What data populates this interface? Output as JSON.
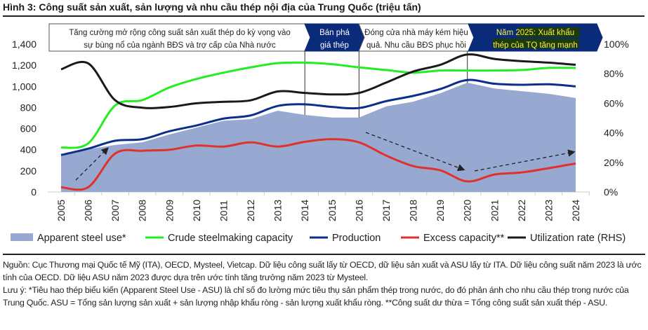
{
  "title": "Hình 3: Công suất sản xuất, sản lượng và nhu cầu thép nội địa của Trung Quốc (triệu tấn)",
  "annotations": [
    {
      "line1": "Tăng cường mở rộng công suất sản xuất thép do kỳ vọng vào",
      "line2": "sự bùng nổ của ngành BĐS và trợ cấp của Nhà nước",
      "style": "light"
    },
    {
      "line1": "Bán phá",
      "line2": "giá thép",
      "style": "dark"
    },
    {
      "line1": "Đóng cửa nhà máy kém hiệu",
      "line2": "quả. Nhu cầu BĐS phục hồi",
      "style": "light"
    },
    {
      "line1": "Năm 2025: Xuất khẩu",
      "line2": "thép của TQ tăng mạnh",
      "style": "dark"
    }
  ],
  "chart_data": {
    "type": "line",
    "title": "Hình 3: Công suất sản xuất, sản lượng và nhu cầu thép nội địa của Trung Quốc (triệu tấn)",
    "x": [
      "2005",
      "2006",
      "2007",
      "2008",
      "2009",
      "2010",
      "2011",
      "2012",
      "2013",
      "2014",
      "2015",
      "2016",
      "2017",
      "2018",
      "2019",
      "2020",
      "2021",
      "2022",
      "2023",
      "2024"
    ],
    "ylim": [
      0,
      1400
    ],
    "yticks": [
      "0",
      "200",
      "400",
      "600",
      "800",
      "1,000",
      "1,200",
      "1,400"
    ],
    "y2lim": [
      0,
      100
    ],
    "y2ticks": [
      "0%",
      "20%",
      "40%",
      "60%",
      "80%",
      "100%"
    ],
    "grid": false,
    "legend_position": "bottom",
    "series": [
      {
        "name": "Apparent steel use*",
        "kind": "area",
        "color": "#97a9d1",
        "axis": "left",
        "values": [
          345,
          405,
          445,
          470,
          545,
          610,
          675,
          690,
          770,
          730,
          705,
          705,
          810,
          855,
          935,
          1035,
          980,
          955,
          930,
          890
        ]
      },
      {
        "name": "Crude steelmaking capacity",
        "kind": "line",
        "color": "#22ee22",
        "axis": "left",
        "values": [
          420,
          460,
          820,
          870,
          990,
          1070,
          1130,
          1180,
          1220,
          1225,
          1210,
          1180,
          1155,
          1130,
          1150,
          1150,
          1150,
          1155,
          1175,
          1175
        ]
      },
      {
        "name": "Production",
        "kind": "line",
        "color": "#0a2f8c",
        "axis": "left",
        "values": [
          350,
          410,
          485,
          500,
          575,
          630,
          695,
          725,
          815,
          830,
          805,
          795,
          860,
          910,
          975,
          1060,
          1025,
          1015,
          1020,
          1000
        ]
      },
      {
        "name": "Excess capacity**",
        "kind": "line",
        "color": "#e0312a",
        "axis": "left",
        "values": [
          45,
          45,
          365,
          390,
          400,
          440,
          430,
          470,
          430,
          475,
          500,
          470,
          345,
          245,
          205,
          100,
          165,
          185,
          225,
          270
        ]
      },
      {
        "name": "Utilization rate (RHS)",
        "kind": "line",
        "color": "#1a1a1a",
        "axis": "right",
        "values": [
          83,
          87,
          62,
          57,
          57.5,
          60,
          61,
          62,
          68,
          67,
          66,
          67,
          74,
          81.5,
          86,
          93,
          90,
          88.5,
          87.5,
          86
        ]
      }
    ]
  },
  "notes": {
    "source": "Nguồn: Cục Thương mại Quốc tế Mỹ (ITA), OECD, Mysteel, Vietcap. Dữ liệu công suất lấy từ OECD, dữ liệu sản xuất và ASU lấy từ ITA. Dữ liệu công suất năm 2023 là ước tính của OECD. Dữ liệu ASU năm 2023 được dựa trên ước tính tăng trưởng năm 2023 từ Mysteel.",
    "note": "Lưu ý: *Tiêu hao thép biểu kiến (Apparent Steel Use - ASU) là chỉ số đo lường mức tiêu thụ sản phẩm thép trong nước, do đó phản ánh cho nhu cầu thép trong nước của Trung Quốc. ASU = Tổng sản lượng sản xuất + sản lượng nhập khẩu ròng - sản lượng xuất khẩu ròng. **Công suất dư thừa = Tổng công suất sản xuất thép - ASU."
  }
}
